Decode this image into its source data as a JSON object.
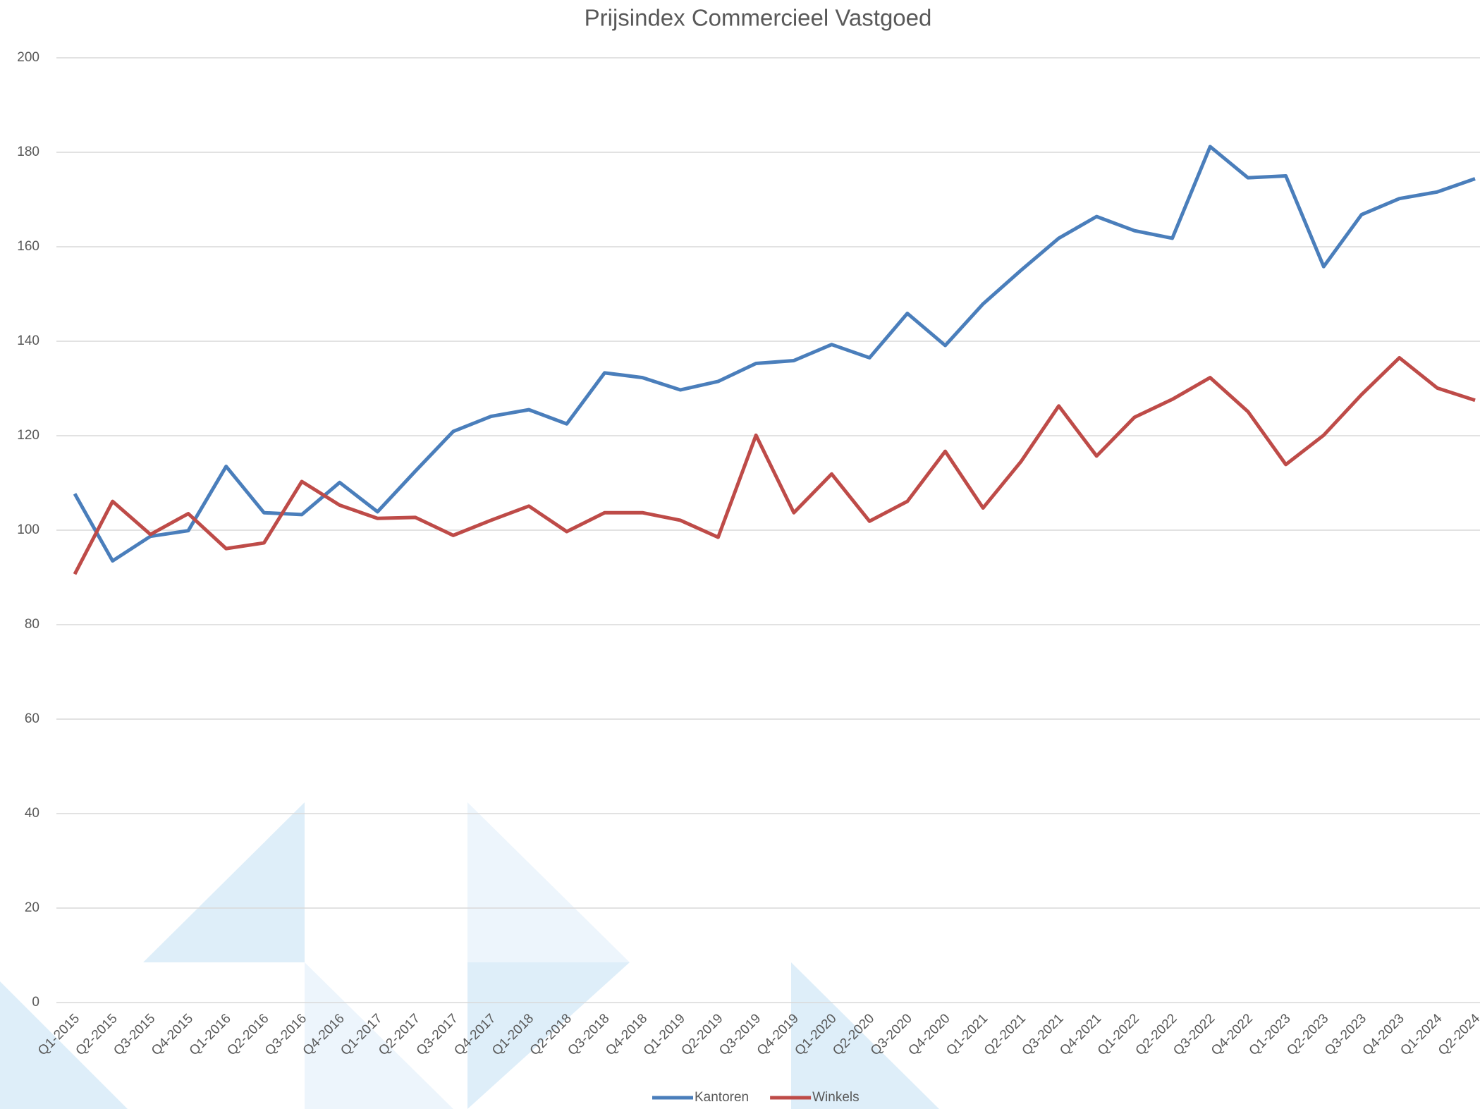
{
  "chart_data": {
    "type": "line",
    "title": "Prijsindex Commercieel Vastgoed",
    "categories": [
      "Q1-2015",
      "Q2-2015",
      "Q3-2015",
      "Q4-2015",
      "Q1-2016",
      "Q2-2016",
      "Q3-2016",
      "Q4-2016",
      "Q1-2017",
      "Q2-2017",
      "Q3-2017",
      "Q4-2017",
      "Q1-2018",
      "Q2-2018",
      "Q3-2018",
      "Q4-2018",
      "Q1-2019",
      "Q2-2019",
      "Q3-2019",
      "Q4-2019",
      "Q1-2020",
      "Q2-2020",
      "Q3-2020",
      "Q4-2020",
      "Q1-2021",
      "Q2-2021",
      "Q3-2021",
      "Q4-2021",
      "Q1-2022",
      "Q2-2022",
      "Q3-2022",
      "Q4-2022",
      "Q1-2023",
      "Q2-2023",
      "Q3-2023",
      "Q4-2023",
      "Q1-2024",
      "Q2-2024"
    ],
    "series": [
      {
        "name": "Kantoren",
        "color": "#4a7ebb",
        "values": [
          107.7,
          93.5,
          98.7,
          99.9,
          113.5,
          103.7,
          103.3,
          110.1,
          103.9,
          112.5,
          120.9,
          124.1,
          125.5,
          122.5,
          133.3,
          132.3,
          129.7,
          131.5,
          135.3,
          135.9,
          139.3,
          136.5,
          145.9,
          139.1,
          147.9,
          155.0,
          161.8,
          166.4,
          163.4,
          161.8,
          181.2,
          174.6,
          175.0,
          155.8,
          166.8,
          170.2,
          171.6,
          174.4
        ]
      },
      {
        "name": "Winkels",
        "color": "#be4b48",
        "values": [
          90.7,
          106.1,
          99.1,
          103.5,
          96.1,
          97.3,
          110.3,
          105.3,
          102.5,
          102.7,
          98.9,
          102.1,
          105.1,
          99.7,
          103.7,
          103.7,
          102.1,
          98.5,
          120.1,
          103.7,
          111.9,
          101.9,
          106.1,
          116.7,
          104.7,
          114.5,
          126.3,
          115.7,
          123.9,
          127.7,
          132.3,
          125.1,
          113.9,
          120.1,
          128.7,
          136.5,
          130.1,
          127.5
        ]
      }
    ],
    "ylim": [
      0,
      200
    ],
    "yticks": [
      0,
      20,
      40,
      60,
      80,
      100,
      120,
      140,
      160,
      180,
      200
    ],
    "grid": true,
    "legend": "bottom"
  }
}
